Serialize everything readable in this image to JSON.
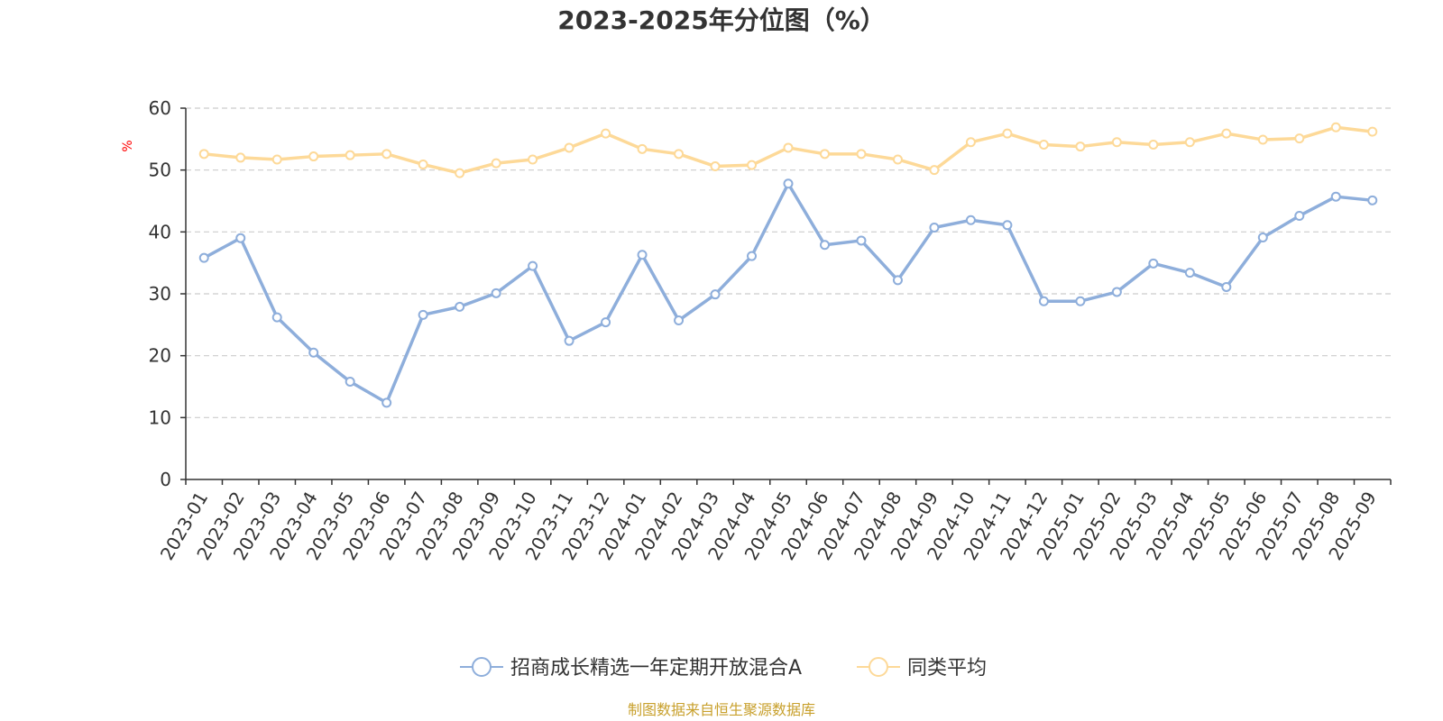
{
  "chart_data": {
    "type": "line",
    "title": "2023-2025年分位图（%）",
    "ylabel": "%",
    "xlabel": "",
    "ylim": [
      0,
      60
    ],
    "yticks": [
      0,
      10,
      20,
      30,
      40,
      50,
      60
    ],
    "grid": "horizontal dashed",
    "legend_position": "bottom-center",
    "categories": [
      "2023-01",
      "2023-02",
      "2023-03",
      "2023-04",
      "2023-05",
      "2023-06",
      "2023-07",
      "2023-08",
      "2023-09",
      "2023-10",
      "2023-11",
      "2023-12",
      "2024-01",
      "2024-02",
      "2024-03",
      "2024-04",
      "2024-05",
      "2024-06",
      "2024-07",
      "2024-08",
      "2024-09",
      "2024-10",
      "2024-11",
      "2024-12",
      "2025-01",
      "2025-02",
      "2025-03",
      "2025-04",
      "2025-05",
      "2025-06",
      "2025-07",
      "2025-08",
      "2025-09"
    ],
    "series": [
      {
        "name": "招商成长精选一年定期开放混合A",
        "color": "#8eaedb",
        "values": [
          35.8,
          39.0,
          26.2,
          20.5,
          15.8,
          12.4,
          26.6,
          27.9,
          30.1,
          34.5,
          22.4,
          25.4,
          36.3,
          25.7,
          29.9,
          36.1,
          47.8,
          37.9,
          38.6,
          32.2,
          40.7,
          41.9,
          41.1,
          28.8,
          28.8,
          30.3,
          34.9,
          33.4,
          31.1,
          39.1,
          42.6,
          45.7,
          45.1
        ]
      },
      {
        "name": "同类平均",
        "color": "#fdd998",
        "values": [
          52.6,
          52.0,
          51.7,
          52.2,
          52.4,
          52.6,
          50.9,
          49.5,
          51.1,
          51.7,
          53.6,
          55.9,
          53.4,
          52.6,
          50.6,
          50.8,
          53.6,
          52.6,
          52.6,
          51.7,
          50.0,
          54.5,
          55.9,
          54.1,
          53.8,
          54.5,
          54.1,
          54.5,
          55.9,
          54.9,
          55.1,
          56.9,
          56.2
        ]
      }
    ]
  },
  "source_note": "制图数据来自恒生聚源数据库"
}
